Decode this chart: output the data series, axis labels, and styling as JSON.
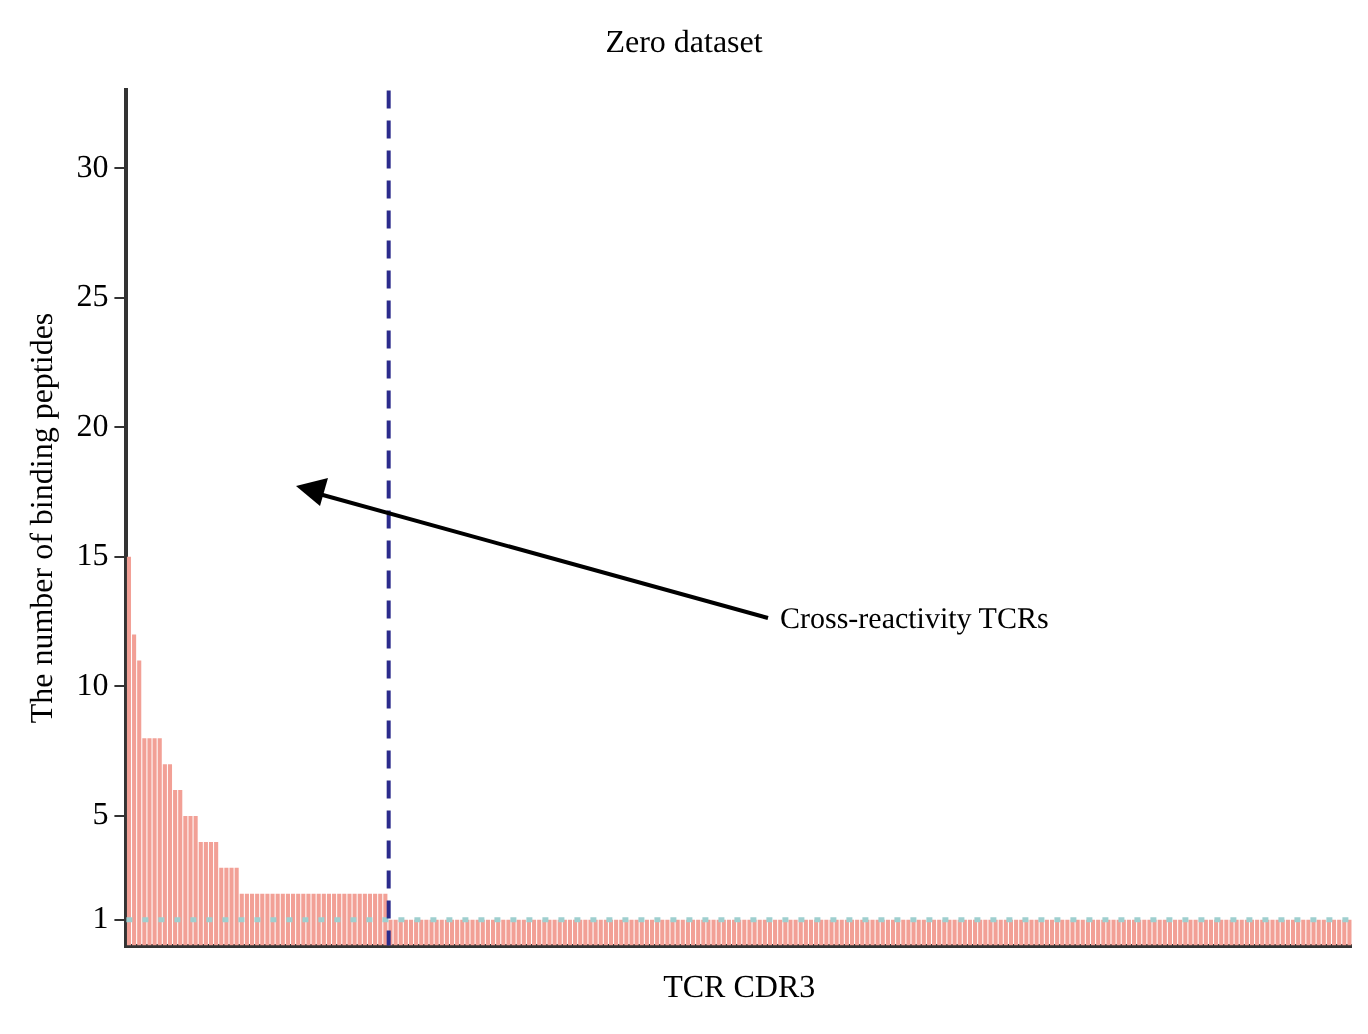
{
  "chart_data": {
    "type": "bar",
    "title": "Zero dataset",
    "xlabel": "TCR CDR3",
    "ylabel": "The number of binding peptides",
    "categories": [
      null,
      null,
      null,
      null,
      null,
      null,
      null,
      null,
      null,
      null,
      null,
      null,
      null,
      null,
      null,
      null,
      null,
      null,
      null,
      null,
      null,
      null,
      null,
      null,
      null,
      null,
      null,
      null,
      null,
      null,
      null,
      null,
      null,
      null,
      null,
      null,
      null,
      null,
      null,
      null,
      null,
      null,
      null,
      null,
      null,
      null,
      null,
      null,
      null,
      null,
      null,
      null,
      null,
      null,
      null,
      null,
      null,
      null,
      null,
      null,
      null,
      null,
      null,
      null,
      null,
      null,
      null,
      null,
      null,
      null,
      null,
      null,
      null,
      null,
      null,
      null,
      null,
      null,
      null,
      null,
      null,
      null,
      null,
      null,
      null,
      null,
      null,
      null,
      null,
      null,
      null,
      null,
      null,
      null,
      null,
      null,
      null,
      null,
      null,
      null,
      null,
      null,
      null,
      null,
      null,
      null,
      null,
      null,
      null,
      null,
      null,
      null,
      null,
      null,
      null,
      null,
      null,
      null,
      null,
      null,
      null,
      null,
      null,
      null,
      null,
      null,
      null,
      null,
      null,
      null,
      null,
      null,
      null,
      null,
      null,
      null,
      null,
      null,
      null,
      null,
      null,
      null,
      null,
      null,
      null,
      null,
      null,
      null,
      null,
      null,
      null,
      null,
      null,
      null,
      null,
      null,
      null,
      null,
      null,
      null,
      null,
      null,
      null,
      null,
      null,
      null,
      null,
      null,
      null,
      null,
      null,
      null,
      null,
      null,
      null,
      null,
      null,
      null,
      null,
      null,
      null,
      null,
      null,
      null,
      null,
      null,
      null,
      null,
      null,
      null,
      null,
      null,
      null,
      null,
      null,
      null,
      null,
      null,
      null,
      null,
      null,
      null,
      null,
      null,
      null,
      null,
      null,
      null,
      null,
      null,
      null,
      null,
      null,
      null,
      null,
      null,
      null,
      null,
      null,
      null,
      null,
      null,
      null,
      null,
      null,
      null,
      null,
      null,
      null,
      null,
      null,
      null,
      null,
      null,
      null,
      null,
      null,
      null,
      null
    ],
    "values": [
      15,
      12,
      11,
      8,
      8,
      8,
      8,
      7,
      7,
      6,
      6,
      5,
      5,
      5,
      4,
      4,
      4,
      4,
      3,
      3,
      3,
      3,
      2,
      2,
      2,
      2,
      2,
      2,
      2,
      2,
      2,
      2,
      2,
      2,
      2,
      2,
      2,
      2,
      2,
      2,
      2,
      2,
      2,
      2,
      2,
      2,
      2,
      2,
      2,
      2,
      2,
      1,
      1,
      1,
      1,
      1,
      1,
      1,
      1,
      1,
      1,
      1,
      1,
      1,
      1,
      1,
      1,
      1,
      1,
      1,
      1,
      1,
      1,
      1,
      1,
      1,
      1,
      1,
      1,
      1,
      1,
      1,
      1,
      1,
      1,
      1,
      1,
      1,
      1,
      1,
      1,
      1,
      1,
      1,
      1,
      1,
      1,
      1,
      1,
      1,
      1,
      1,
      1,
      1,
      1,
      1,
      1,
      1,
      1,
      1,
      1,
      1,
      1,
      1,
      1,
      1,
      1,
      1,
      1,
      1,
      1,
      1,
      1,
      1,
      1,
      1,
      1,
      1,
      1,
      1,
      1,
      1,
      1,
      1,
      1,
      1,
      1,
      1,
      1,
      1,
      1,
      1,
      1,
      1,
      1,
      1,
      1,
      1,
      1,
      1,
      1,
      1,
      1,
      1,
      1,
      1,
      1,
      1,
      1,
      1,
      1,
      1,
      1,
      1,
      1,
      1,
      1,
      1,
      1,
      1,
      1,
      1,
      1,
      1,
      1,
      1,
      1,
      1,
      1,
      1,
      1,
      1,
      1,
      1,
      1,
      1,
      1,
      1,
      1,
      1,
      1,
      1,
      1,
      1,
      1,
      1,
      1,
      1,
      1,
      1,
      1,
      1,
      1,
      1,
      1,
      1,
      1,
      1,
      1,
      1,
      1,
      1,
      1,
      1,
      1,
      1,
      1,
      1,
      1,
      1,
      1,
      1,
      1,
      1,
      1,
      1,
      1,
      1,
      1,
      1,
      1,
      1,
      1,
      1,
      1,
      1,
      1,
      1,
      1
    ],
    "color": "#f2a096",
    "ylim": [
      0,
      33
    ],
    "yticks": [
      1,
      5,
      10,
      15,
      20,
      25,
      30
    ],
    "tick_labels": "y",
    "ref_lines": [
      {
        "axis": "y",
        "value": 1,
        "color": "#9fcfcf",
        "line_style": "dotted"
      }
    ],
    "annotations": [
      "Cross-reactivity TCRs"
    ]
  }
}
